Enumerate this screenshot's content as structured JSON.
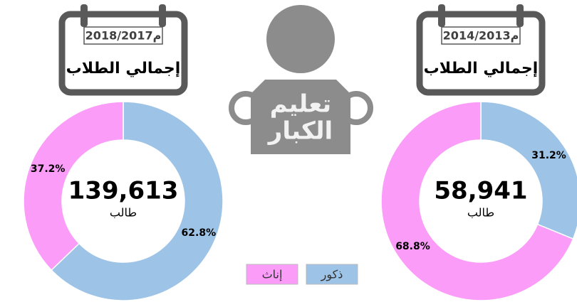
{
  "icon_text": [
    "تعليم",
    "الكبار"
  ],
  "chart_data": [
    {
      "type": "pie",
      "period": "2018/2017م",
      "heading": "إجمالي الطلاب",
      "center_text": "139,613",
      "unit": "طالب",
      "categories": [
        "ذكور",
        "إناث"
      ],
      "values": [
        62.8,
        37.2
      ],
      "value_labels": [
        "62.8%",
        "37.2%"
      ],
      "colors": [
        "#9dc3e6",
        "#fb9cf8"
      ]
    },
    {
      "type": "pie",
      "period": "2014/2013م",
      "heading": "إجمالي الطلاب",
      "center_text": "58,941",
      "unit": "طالب",
      "categories": [
        "ذكور",
        "إناث"
      ],
      "values": [
        31.2,
        68.8
      ],
      "value_labels": [
        "31.2%",
        "68.8%"
      ],
      "colors": [
        "#9dc3e6",
        "#fb9cf8"
      ]
    }
  ]
}
